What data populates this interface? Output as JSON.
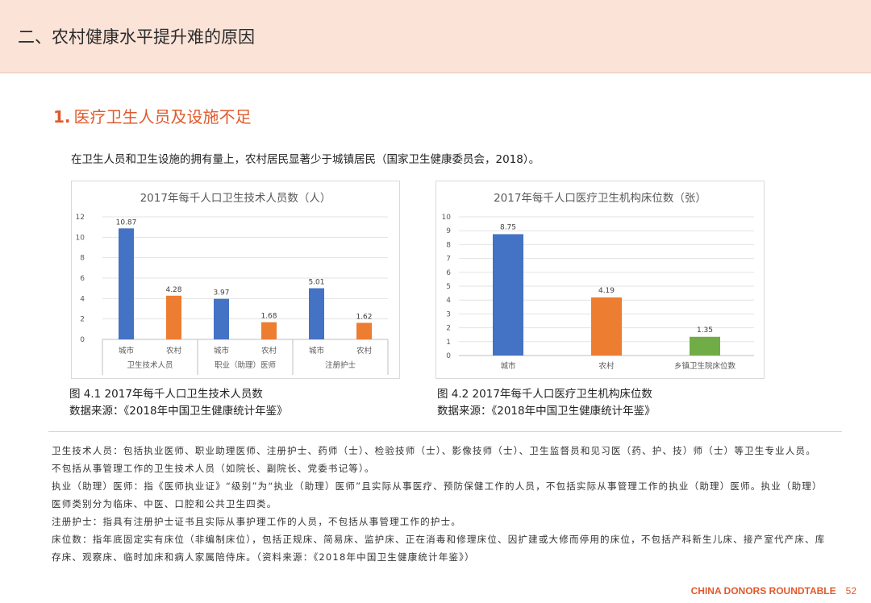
{
  "header": {
    "title": "二、农村健康水平提升难的原因"
  },
  "section": {
    "number": "1.",
    "title": "医疗卫生人员及设施不足"
  },
  "intro": "在卫生人员和卫生设施的拥有量上，农村居民显著少于城镇居民（国家卫生健康委员会，2018）。",
  "chart_data": [
    {
      "type": "bar",
      "title": "2017年每千人口卫生技术人员数（人）",
      "groups": [
        {
          "label": "卫生技术人员",
          "items": [
            {
              "label": "城市",
              "value": 10.87,
              "color": "#4472c4"
            },
            {
              "label": "农村",
              "value": 4.28,
              "color": "#ed7d31"
            }
          ]
        },
        {
          "label": "职业（助理）医师",
          "items": [
            {
              "label": "城市",
              "value": 3.97,
              "color": "#4472c4"
            },
            {
              "label": "农村",
              "value": 1.68,
              "color": "#ed7d31"
            }
          ]
        },
        {
          "label": "注册护士",
          "items": [
            {
              "label": "城市",
              "value": 5.01,
              "color": "#4472c4"
            },
            {
              "label": "农村",
              "value": 1.62,
              "color": "#ed7d31"
            }
          ]
        }
      ],
      "ylim": [
        0,
        12
      ],
      "yticks": [
        "0",
        "2",
        "4",
        "6",
        "8",
        "10",
        "12"
      ],
      "grid": true
    },
    {
      "type": "bar",
      "title": "2017年每千人口医疗卫生机构床位数（张）",
      "categories": [
        "城市",
        "农村",
        "乡镇卫生院床位数"
      ],
      "values": [
        8.75,
        4.19,
        1.35
      ],
      "labels": [
        "8.75",
        "4.19",
        "1.35"
      ],
      "colors": [
        "#4472c4",
        "#ed7d31",
        "#70ad47"
      ],
      "ylim": [
        0,
        10
      ],
      "yticks": [
        "0",
        "1",
        "2",
        "3",
        "4",
        "5",
        "6",
        "7",
        "8",
        "9",
        "10"
      ],
      "grid": true
    }
  ],
  "captions": {
    "chart1_line1": "图 4.1 2017年每千人口卫生技术人员数",
    "chart1_line2": "数据来源：《2018年中国卫生健康统计年鉴》",
    "chart2_line1": "图 4.2 2017年每千人口医疗卫生机构床位数",
    "chart2_line2": "数据来源：《2018年中国卫生健康统计年鉴》"
  },
  "notes": [
    "卫生技术人员：包括执业医师、职业助理医师、注册护士、药师（士）、检验技师（士）、影像技师（士）、卫生监督员和见习医（药、护、技）师（士）等卫生专业人员。不包括从事管理工作的卫生技术人员（如院长、副院长、党委书记等）。",
    "执业（助理）医师：指《医师执业证》“级别”为“执业（助理）医师”且实际从事医疗、预防保健工作的人员，不包括实际从事管理工作的执业（助理）医师。执业（助理）医师类别分为临床、中医、口腔和公共卫生四类。",
    "注册护士：指具有注册护士证书且实际从事护理工作的人员，不包括从事管理工作的护士。",
    "床位数：指年底固定实有床位（非编制床位），包括正规床、简易床、监护床、正在消毒和修理床位、因扩建或大修而停用的床位，不包括产科新生儿床、接产室代产床、库存床、观察床、临时加床和病人家属陪侍床。（资料来源：《2018年中国卫生健康统计年鉴》）"
  ],
  "footer": {
    "org": "CHINA DONORS ROUNDTABLE",
    "page": "52"
  }
}
